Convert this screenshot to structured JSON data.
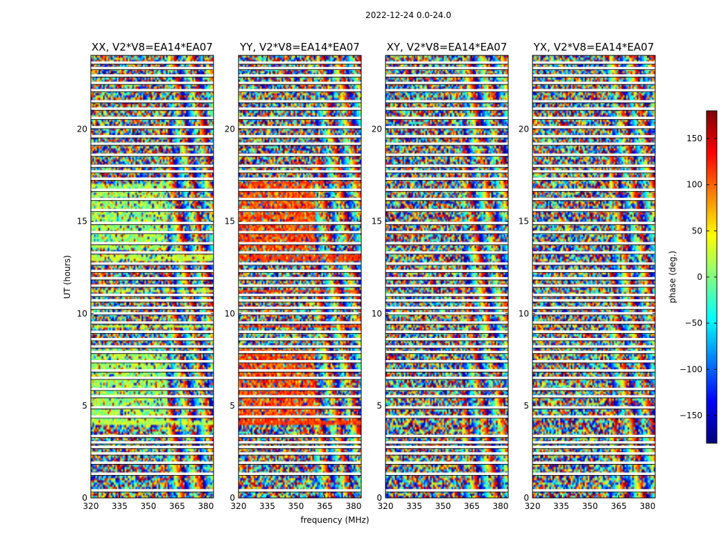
{
  "figure": {
    "suptitle": "2022-12-24 0.0-24.0",
    "xlabel": "frequency (MHz)",
    "ylabel": "UT (hours)",
    "colorbar_label": "phase (deg.)"
  },
  "chart_data": {
    "type": "heatmap",
    "title": "2022-12-24 0.0-24.0",
    "xlabel": "frequency (MHz)",
    "ylabel": "UT (hours)",
    "xlim": [
      320,
      384
    ],
    "ylim": [
      0,
      24
    ],
    "x_ticks": [
      320,
      335,
      350,
      365,
      380
    ],
    "y_ticks": [
      0,
      5,
      10,
      15,
      20
    ],
    "colormap": "jet",
    "colorbar": {
      "label": "phase (deg.)",
      "range": [
        -180,
        180
      ],
      "ticks": [
        -150,
        -100,
        -50,
        0,
        50,
        100,
        150
      ],
      "tick_labels": [
        "−150",
        "−100",
        "−50",
        "0",
        "50",
        "100",
        "150"
      ]
    },
    "panels": [
      {
        "title": "XX, V2*V8=EA14*EA07",
        "typical_phase_deg": [
          {
            "x_range": [
              320,
              360
            ],
            "y_range": [
              4,
              8.1
            ],
            "phase_deg": 10
          },
          {
            "x_range": [
              320,
              360
            ],
            "y_range": [
              13.5,
              17
            ],
            "phase_deg": 10
          }
        ],
        "bright_rows": [
          {
            "ut": 4.1,
            "phase_deg": 25
          },
          {
            "ut": 9.3,
            "phase_deg": 25
          },
          {
            "ut": 11.2,
            "phase_deg": 25
          },
          {
            "ut": 12.9,
            "phase_deg": 25
          },
          {
            "ut": 13.1,
            "phase_deg": 25
          }
        ]
      },
      {
        "title": "YY, V2*V8=EA14*EA07",
        "typical_phase_deg": [
          {
            "x_range": [
              320,
              360
            ],
            "y_range": [
              4,
              8.1
            ],
            "phase_deg": 110
          },
          {
            "x_range": [
              320,
              360
            ],
            "y_range": [
              13.5,
              17
            ],
            "phase_deg": 110
          }
        ],
        "bright_rows": [
          {
            "ut": 4.1,
            "phase_deg": 115
          },
          {
            "ut": 9.3,
            "phase_deg": 115
          },
          {
            "ut": 11.2,
            "phase_deg": 115
          },
          {
            "ut": 12.9,
            "phase_deg": 115
          },
          {
            "ut": 13.1,
            "phase_deg": 115
          },
          {
            "ut": 17.1,
            "phase_deg": 115
          }
        ]
      },
      {
        "title": "XY, V2*V8=EA14*EA07",
        "typical_phase_deg": [],
        "bright_rows": []
      },
      {
        "title": "YX, V2*V8=EA14*EA07",
        "typical_phase_deg": [],
        "bright_rows": []
      }
    ],
    "flagged_ut_hours": [
      0.4,
      1.3,
      1.9,
      2.4,
      2.75,
      3.0,
      3.35,
      4.4,
      4.9,
      5.5,
      5.9,
      6.5,
      6.9,
      7.4,
      7.9,
      8.2,
      8.6,
      9.0,
      9.5,
      10.0,
      10.3,
      10.7,
      11.0,
      11.5,
      11.9,
      12.3,
      12.7,
      13.3,
      13.8,
      14.4,
      14.9,
      15.6,
      16.2,
      16.7,
      17.3,
      17.7,
      18.0,
      18.6,
      19.2,
      19.6,
      20.1,
      20.6,
      21.1,
      21.5,
      22.1,
      22.5,
      22.9,
      23.3,
      23.6
    ]
  }
}
